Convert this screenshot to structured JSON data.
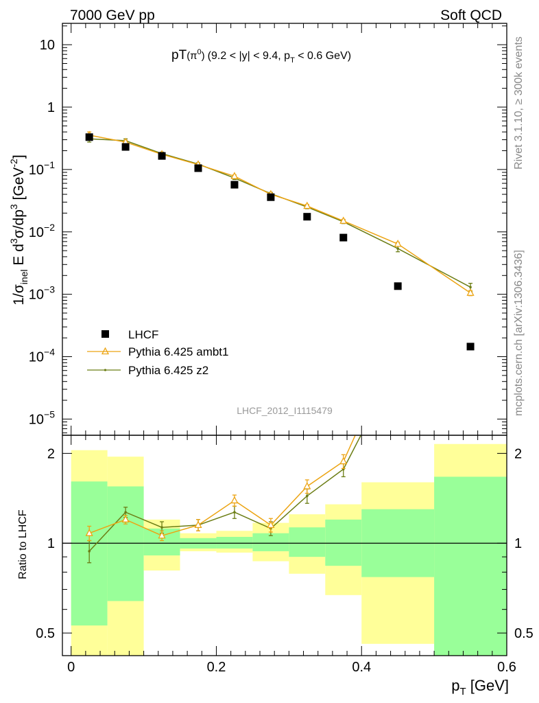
{
  "header": {
    "left": "7000 GeV pp",
    "right": "Soft QCD"
  },
  "side_text": {
    "rivet": "Rivet 3.1.10, ≥ 300k events",
    "mcplots": "mcplots.cern.ch [arXiv:1306.3436]"
  },
  "analysis_id": "LHCF_2012_I1115479",
  "colors": {
    "data": "#000000",
    "ambt1": "#eca413",
    "z2": "#6b7d14",
    "band_inner": "#99ff99",
    "band_outer": "#ffff99"
  },
  "chart_data": [
    {
      "type": "scatter",
      "panel": "main",
      "title_parts": {
        "main": "pT",
        "particle": "(π",
        "particle_sup": "0",
        "particle_close": ")",
        "cuts_a": "(9.2 < |y| < 9.4, p",
        "cuts_sub": "T",
        "cuts_b": " < 0.6 GeV)"
      },
      "ylabel_parts": {
        "a": "1/σ",
        "a_sub": "inel",
        "b": " E d",
        "b_sup": "3",
        "c": "σ/dp",
        "c_sup": "3",
        "d": " [GeV",
        "d_sup": "-2",
        "e": "]"
      },
      "y_scale": "log",
      "ylim": [
        5.5e-06,
        22
      ],
      "xlim": [
        -0.012,
        0.6
      ],
      "y_ticks": [
        {
          "value": 10,
          "label": "10"
        },
        {
          "value": 1,
          "label": "1"
        },
        {
          "value": 0.1,
          "base": "10",
          "exp": "−1"
        },
        {
          "value": 0.01,
          "base": "10",
          "exp": "−2"
        },
        {
          "value": 0.001,
          "base": "10",
          "exp": "−3"
        },
        {
          "value": 0.0001,
          "base": "10",
          "exp": "−4"
        },
        {
          "value": 1e-05,
          "base": "10",
          "exp": "−5"
        }
      ],
      "legend": {
        "placement": "lower-left",
        "entries": [
          {
            "name": "LHCF",
            "style": "square"
          },
          {
            "name": "Pythia 6.425 ambt1",
            "style": "triangle"
          },
          {
            "name": "Pythia 6.425 z2",
            "style": "dot"
          }
        ]
      },
      "series": [
        {
          "name": "LHCF",
          "x": [
            0.025,
            0.075,
            0.125,
            0.175,
            0.225,
            0.275,
            0.325,
            0.375,
            0.45,
            0.55
          ],
          "y": [
            0.33,
            0.23,
            0.165,
            0.105,
            0.057,
            0.036,
            0.0175,
            0.0081,
            0.00135,
            0.000145
          ]
        },
        {
          "name": "Pythia 6.425 ambt1",
          "x": [
            0.025,
            0.075,
            0.125,
            0.175,
            0.225,
            0.275,
            0.325,
            0.375,
            0.45,
            0.55
          ],
          "y": [
            0.355,
            0.275,
            0.175,
            0.12,
            0.078,
            0.04,
            0.026,
            0.015,
            0.0064,
            0.00105
          ],
          "yerr": [
            0.045,
            0.02,
            0.01,
            0.006,
            0.004,
            0.002,
            0.0015,
            0.0009,
            0.0004,
            0.0001
          ]
        },
        {
          "name": "Pythia 6.425 z2",
          "x": [
            0.025,
            0.075,
            0.125,
            0.175,
            0.225,
            0.275,
            0.325,
            0.375,
            0.45,
            0.55
          ],
          "y": [
            0.31,
            0.29,
            0.18,
            0.122,
            0.073,
            0.041,
            0.025,
            0.0145,
            0.0054,
            0.0013
          ],
          "yerr": [
            0.035,
            0.02,
            0.01,
            0.006,
            0.004,
            0.002,
            0.0015,
            0.0009,
            0.0006,
            0.0002
          ]
        }
      ]
    },
    {
      "type": "line",
      "panel": "ratio",
      "ylabel": "Ratio to LHCF",
      "xlabel_parts": {
        "a": "p",
        "sub": "T",
        "b": " [GeV]"
      },
      "y_scale": "log",
      "ylim": [
        0.42,
        2.3
      ],
      "xlim": [
        -0.012,
        0.6
      ],
      "x_ticks": [
        {
          "value": 0,
          "label": "0"
        },
        {
          "value": 0.2,
          "label": "0.2"
        },
        {
          "value": 0.4,
          "label": "0.4"
        },
        {
          "value": 0.6,
          "label": "0.6"
        }
      ],
      "y_ticks": [
        {
          "value": 2,
          "label": "2"
        },
        {
          "value": 1,
          "label": "1"
        },
        {
          "value": 0.5,
          "label": "0.5"
        }
      ],
      "bands": [
        {
          "x0": 0.0,
          "x1": 0.05,
          "inner": [
            0.53,
            1.61
          ],
          "outer": [
            0.3,
            2.05
          ]
        },
        {
          "x0": 0.05,
          "x1": 0.1,
          "inner": [
            0.64,
            1.55
          ],
          "outer": [
            0.3,
            1.95
          ]
        },
        {
          "x0": 0.1,
          "x1": 0.15,
          "inner": [
            0.91,
            1.12
          ],
          "outer": [
            0.81,
            1.2
          ]
        },
        {
          "x0": 0.15,
          "x1": 0.2,
          "inner": [
            0.96,
            1.04
          ],
          "outer": [
            0.94,
            1.08
          ]
        },
        {
          "x0": 0.2,
          "x1": 0.25,
          "inner": [
            0.96,
            1.05
          ],
          "outer": [
            0.93,
            1.1
          ]
        },
        {
          "x0": 0.25,
          "x1": 0.3,
          "inner": [
            0.94,
            1.08
          ],
          "outer": [
            0.87,
            1.17
          ]
        },
        {
          "x0": 0.3,
          "x1": 0.35,
          "inner": [
            0.9,
            1.13
          ],
          "outer": [
            0.79,
            1.25
          ]
        },
        {
          "x0": 0.35,
          "x1": 0.4,
          "inner": [
            0.84,
            1.2
          ],
          "outer": [
            0.67,
            1.35
          ]
        },
        {
          "x0": 0.4,
          "x1": 0.5,
          "inner": [
            0.77,
            1.3
          ],
          "outer": [
            0.46,
            1.6
          ]
        },
        {
          "x0": 0.5,
          "x1": 0.6,
          "inner": [
            0.3,
            1.67
          ],
          "outer": [
            0.3,
            2.15
          ]
        }
      ],
      "series": [
        {
          "name": "Pythia 6.425 ambt1",
          "x": [
            0.025,
            0.075,
            0.125,
            0.175,
            0.225,
            0.275,
            0.325,
            0.375,
            0.45
          ],
          "y": [
            1.08,
            1.2,
            1.06,
            1.15,
            1.39,
            1.15,
            1.55,
            1.88,
            4.75
          ],
          "yerr": [
            0.06,
            0.04,
            0.04,
            0.05,
            0.06,
            0.06,
            0.08,
            0.1,
            0.3
          ]
        },
        {
          "name": "Pythia 6.425 z2",
          "x": [
            0.025,
            0.075,
            0.125,
            0.175,
            0.225,
            0.275,
            0.325,
            0.375,
            0.45
          ],
          "y": [
            0.94,
            1.27,
            1.13,
            1.15,
            1.27,
            1.12,
            1.44,
            1.77,
            4.0
          ],
          "yerr": [
            0.08,
            0.05,
            0.05,
            0.05,
            0.06,
            0.06,
            0.08,
            0.1,
            0.3
          ]
        }
      ]
    }
  ]
}
